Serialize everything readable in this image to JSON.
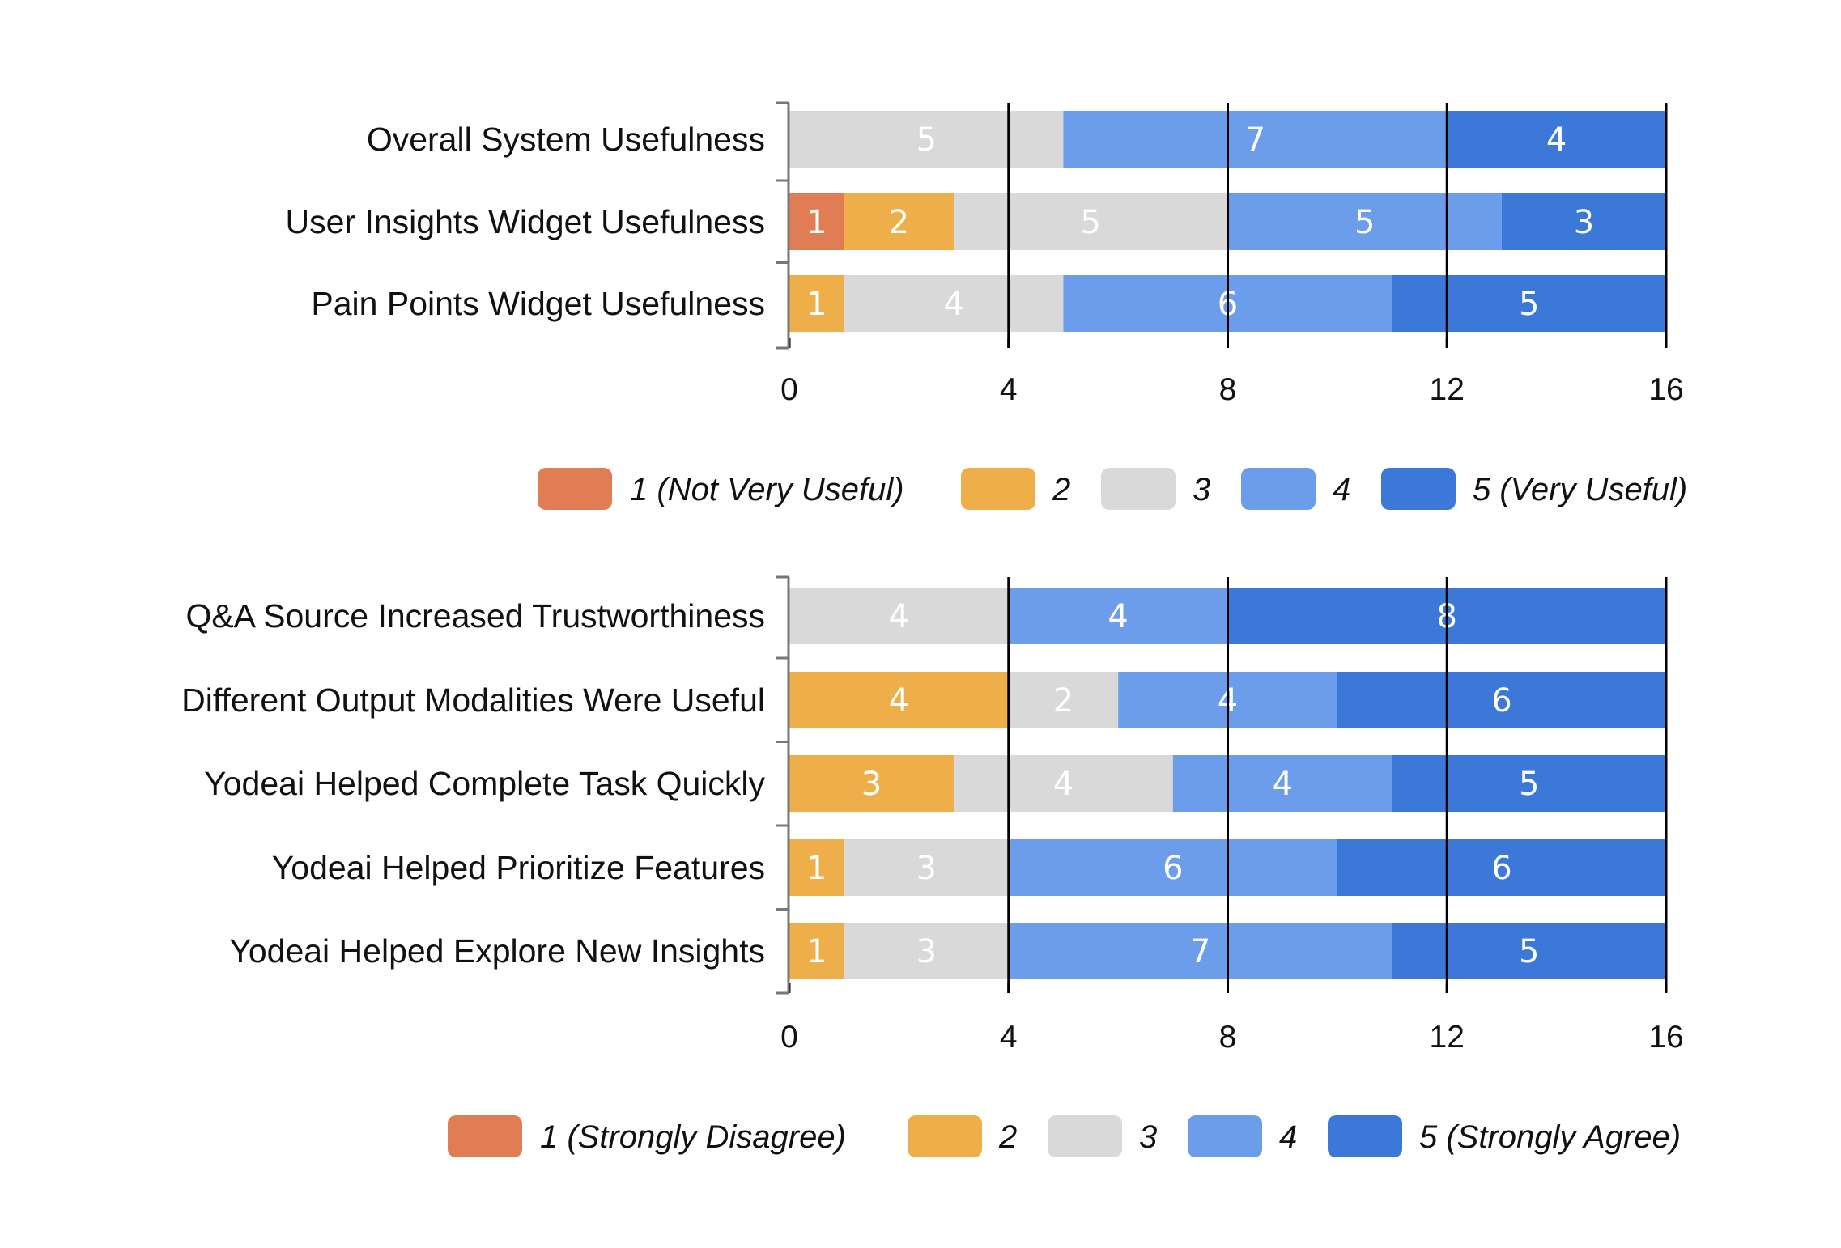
{
  "colors": {
    "1": "#e07d55",
    "2": "#eeae4a",
    "3": "#d9d9d9",
    "4": "#6c9deb",
    "5": "#3b78d8"
  },
  "chart_data": [
    {
      "type": "bar",
      "orientation": "horizontal",
      "stacked": true,
      "xlim": [
        0,
        16
      ],
      "xticks": [
        "0",
        "4",
        "8",
        "12",
        "16"
      ],
      "grid": true,
      "legend_position": "bottom",
      "categories": [
        "Overall System Usefulness",
        "User Insights Widget Usefulness",
        "Pain Points Widget Usefulness"
      ],
      "series": [
        {
          "name": "1 (Not Very Useful)",
          "level": "1",
          "values": [
            0,
            1,
            0
          ]
        },
        {
          "name": "2",
          "level": "2",
          "values": [
            0,
            2,
            1
          ]
        },
        {
          "name": "3",
          "level": "3",
          "values": [
            5,
            5,
            4
          ]
        },
        {
          "name": "4",
          "level": "4",
          "values": [
            7,
            5,
            6
          ]
        },
        {
          "name": "5 (Very Useful)",
          "level": "5",
          "values": [
            4,
            3,
            5
          ]
        }
      ]
    },
    {
      "type": "bar",
      "orientation": "horizontal",
      "stacked": true,
      "xlim": [
        0,
        16
      ],
      "xticks": [
        "0",
        "4",
        "8",
        "12",
        "16"
      ],
      "grid": true,
      "legend_position": "bottom",
      "categories": [
        "Q&A Source Increased Trustworthiness",
        "Different Output Modalities Were Useful",
        "Yodeai Helped Complete Task Quickly",
        "Yodeai Helped Prioritize Features",
        "Yodeai Helped Explore New Insights"
      ],
      "series": [
        {
          "name": "1 (Strongly Disagree)",
          "level": "1",
          "values": [
            0,
            0,
            0,
            0,
            0
          ]
        },
        {
          "name": "2",
          "level": "2",
          "values": [
            0,
            4,
            3,
            1,
            1
          ]
        },
        {
          "name": "3",
          "level": "3",
          "values": [
            4,
            2,
            4,
            3,
            3
          ]
        },
        {
          "name": "4",
          "level": "4",
          "values": [
            4,
            4,
            4,
            6,
            7
          ]
        },
        {
          "name": "5 (Strongly Agree)",
          "level": "5",
          "values": [
            8,
            6,
            5,
            6,
            5
          ]
        }
      ]
    }
  ]
}
